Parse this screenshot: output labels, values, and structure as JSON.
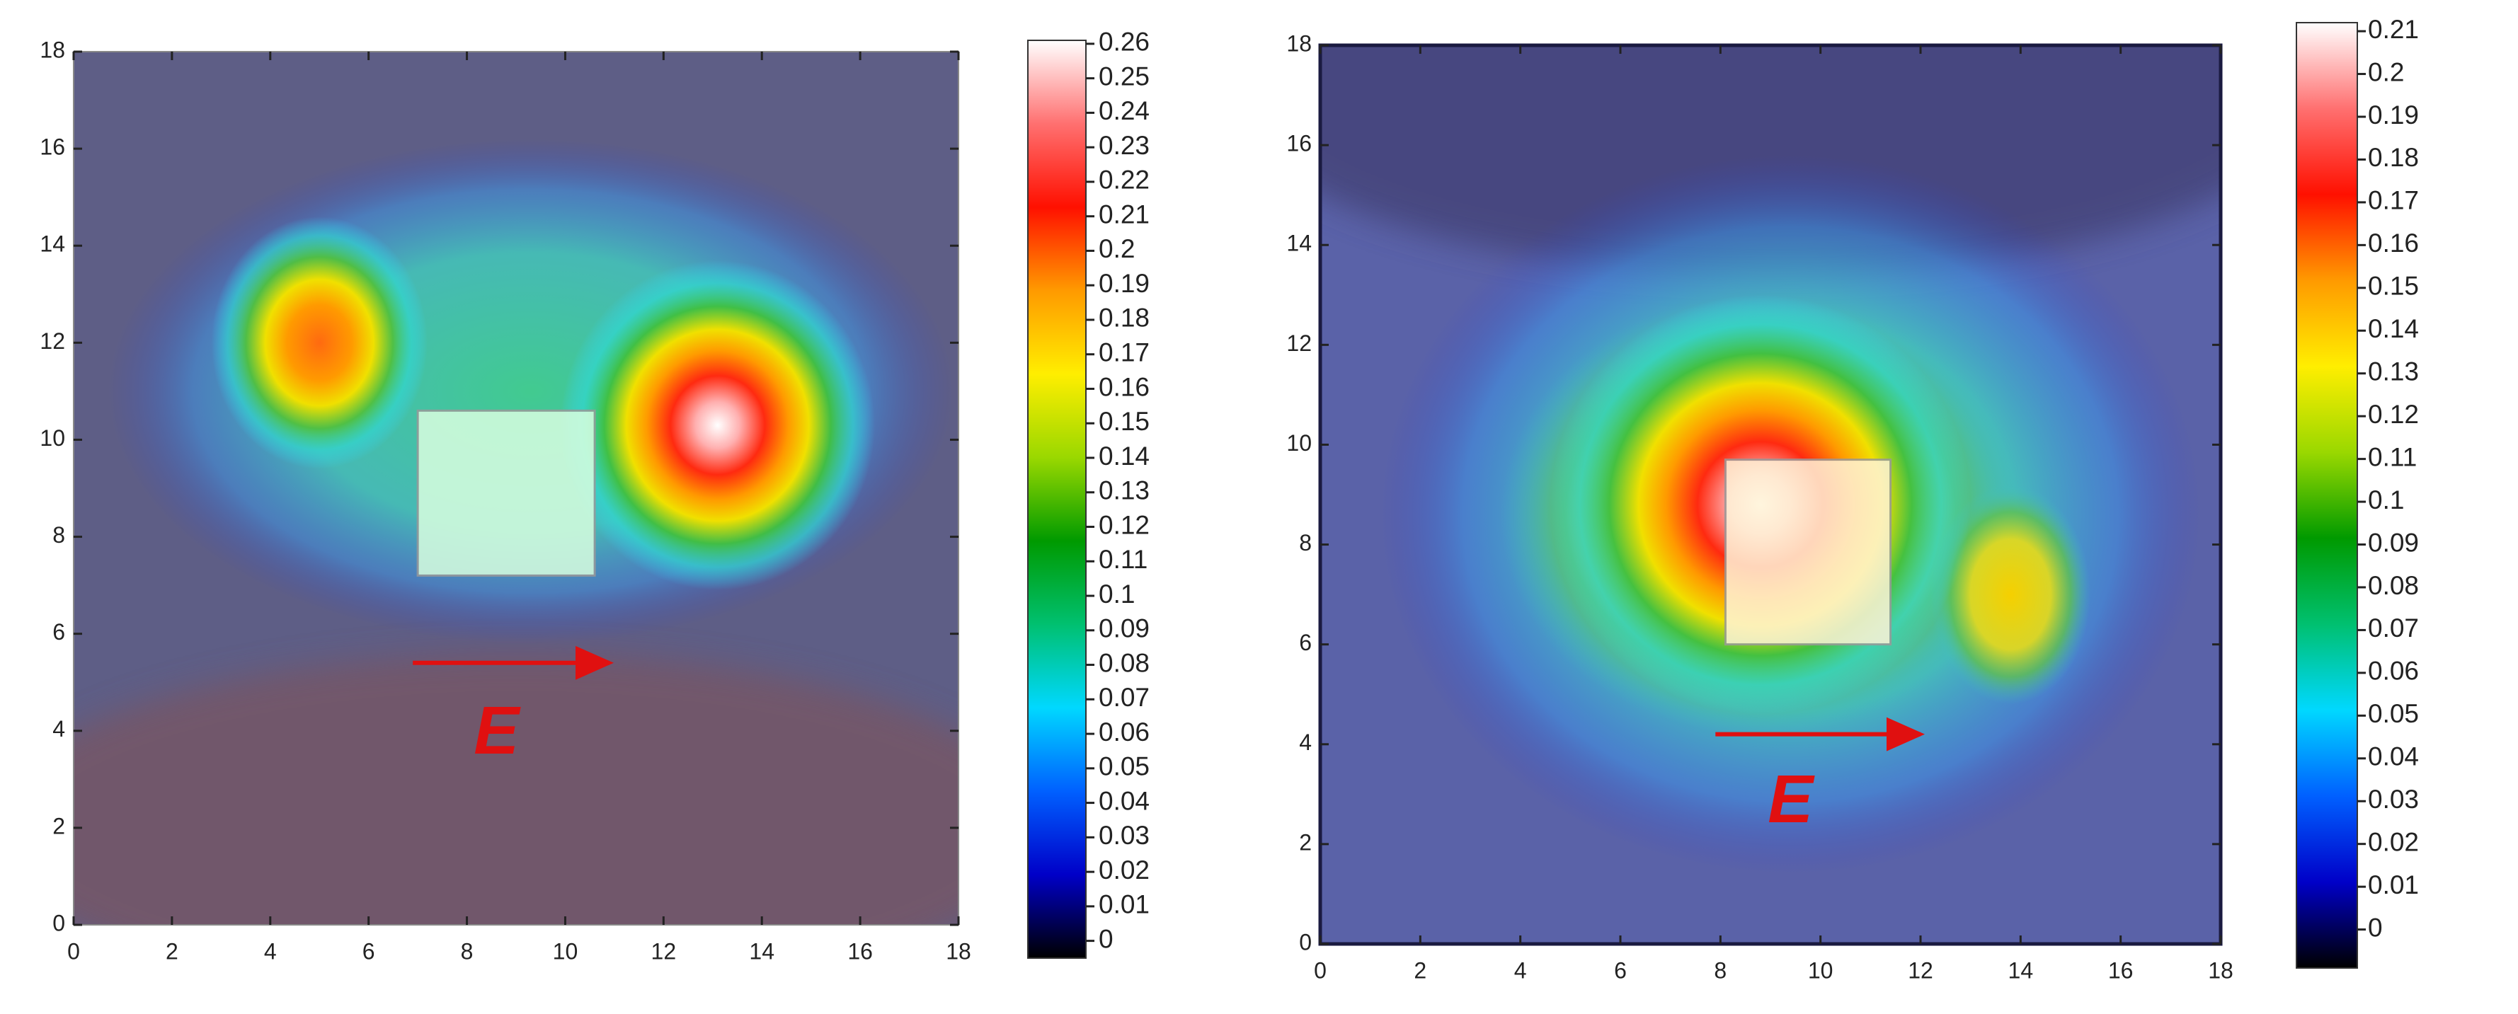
{
  "chart_data": [
    {
      "type": "heatmap",
      "xlim": [
        0,
        18
      ],
      "ylim": [
        0,
        18
      ],
      "xticks": [
        0,
        2,
        4,
        6,
        8,
        10,
        12,
        14,
        16,
        18
      ],
      "yticks": [
        0,
        2,
        4,
        6,
        8,
        10,
        12,
        14,
        16,
        18
      ],
      "colorbar": {
        "clim": [
          -0.005,
          0.261
        ],
        "ticks": [
          0,
          0.01,
          0.02,
          0.03,
          0.04,
          0.05,
          0.06,
          0.07,
          0.08,
          0.09,
          0.1,
          0.11,
          0.12,
          0.13,
          0.14,
          0.15,
          0.16,
          0.17,
          0.18,
          0.19,
          0.2,
          0.21,
          0.22,
          0.23,
          0.24,
          0.25,
          0.26
        ],
        "colormap": [
          "#000000",
          "#0000c8",
          "#0060ff",
          "#00d8ff",
          "#00c070",
          "#009a00",
          "#9ad800",
          "#ffee00",
          "#ff9a00",
          "#ff1000",
          "#ff7070",
          "#ffffff"
        ]
      },
      "annotation": "E"
    },
    {
      "type": "heatmap",
      "xlim": [
        0,
        18
      ],
      "ylim": [
        0,
        18
      ],
      "xticks": [
        0,
        2,
        4,
        6,
        8,
        10,
        12,
        14,
        16,
        18
      ],
      "yticks": [
        0,
        2,
        4,
        6,
        8,
        10,
        12,
        14,
        16,
        18
      ],
      "colorbar": {
        "clim": [
          -0.009,
          0.212
        ],
        "ticks": [
          0,
          0.01,
          0.02,
          0.03,
          0.04,
          0.05,
          0.06,
          0.07,
          0.08,
          0.09,
          0.1,
          0.11,
          0.12,
          0.13,
          0.14,
          0.15,
          0.16,
          0.17,
          0.18,
          0.19,
          0.2,
          0.21
        ],
        "colormap": [
          "#000000",
          "#0000c8",
          "#0060ff",
          "#00d8ff",
          "#00c070",
          "#009a00",
          "#9ad800",
          "#ffee00",
          "#ff9a00",
          "#ff1000",
          "#ff7070",
          "#ffffff"
        ]
      },
      "annotation": "E"
    }
  ]
}
